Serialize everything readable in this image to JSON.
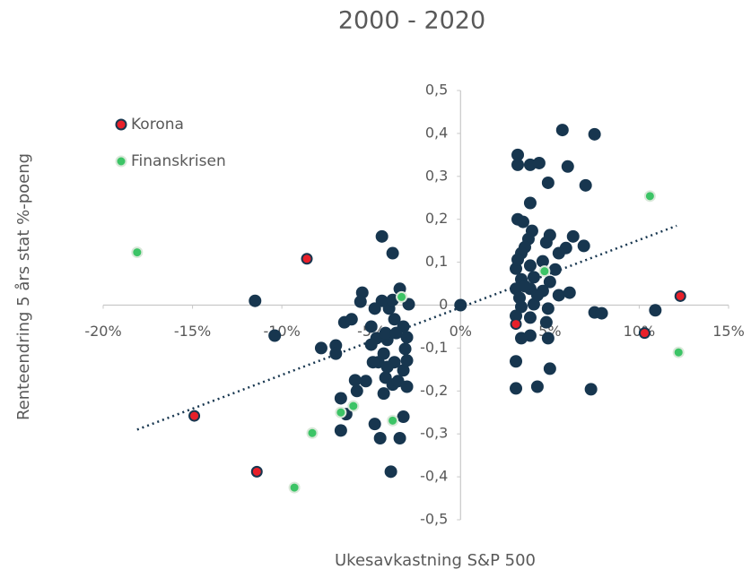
{
  "chart_data": {
    "type": "scatter",
    "title": "2000 - 2020",
    "x_label": "Ukesavkastning S&P 500",
    "y_label": "Renteendring 5 års stat %-poeng",
    "xlim": [
      -20,
      15
    ],
    "ylim": [
      -0.5,
      0.5
    ],
    "xticks": [
      {
        "value": -20,
        "label": "-20%"
      },
      {
        "value": -15,
        "label": "-15%"
      },
      {
        "value": -10,
        "label": "-10%"
      },
      {
        "value": -5,
        "label": "-5%"
      },
      {
        "value": 0,
        "label": "0%"
      },
      {
        "value": 5,
        "label": "5%"
      },
      {
        "value": 10,
        "label": "10%"
      },
      {
        "value": 15,
        "label": "15%"
      }
    ],
    "yticks": [
      {
        "value": 0.5,
        "label": "0,5"
      },
      {
        "value": 0.4,
        "label": "0,4"
      },
      {
        "value": 0.3,
        "label": "0,3"
      },
      {
        "value": 0.2,
        "label": "0,2"
      },
      {
        "value": 0.1,
        "label": "0,1"
      },
      0,
      {
        "value": -0.1,
        "label": "-0,1"
      },
      {
        "value": -0.2,
        "label": "-0,2"
      },
      {
        "value": -0.3,
        "label": "-0,3"
      },
      {
        "value": -0.4,
        "label": "-0,4"
      },
      {
        "value": -0.5,
        "label": "-0,5"
      }
    ],
    "legend": "top-left",
    "trendline": {
      "color": "#17364f",
      "x": [
        -18.1,
        12.1
      ],
      "y": [
        -0.29,
        0.185
      ]
    },
    "series": [
      {
        "color": "#17364f",
        "x": [
          -11.5,
          -10.4,
          -7.8,
          -6.98,
          -6.98,
          -6.5,
          -6.1,
          -5.5,
          -5.6,
          -5.9,
          -5.8,
          -6.7,
          -6.4,
          -6.7,
          -5.3,
          -4.8,
          -4.5,
          -4.4,
          -3.8,
          -3.9,
          -3.4,
          -3.2,
          -4.3,
          -4.2,
          -3.8,
          -3.5,
          -3.0,
          -3.2,
          -3.0,
          -3.1,
          -3.0,
          -3.2,
          -3.7,
          -4.0,
          -4.4,
          -3.8,
          -4.8,
          -5.0,
          -4.7,
          -4.3,
          -4.6,
          -4.9,
          -5.0,
          -4.1,
          -3.7,
          -4.1,
          -2.9,
          -3.4,
          -4.2,
          -3.6,
          0,
          5.7,
          7.5,
          3.2,
          3.2,
          3.9,
          4.4,
          6.0,
          4.9,
          7.0,
          3.9,
          3.2,
          3.5,
          4.0,
          5.0,
          4.8,
          3.8,
          3.6,
          3.4,
          5.9,
          6.9,
          6.3,
          5.5,
          4.6,
          3.9,
          5.3,
          3.1,
          3.4,
          4.1,
          5.0,
          3.1,
          3.9,
          4.6,
          5.5,
          6.1,
          3.3,
          3.4,
          4.1,
          4.9,
          3.1,
          3.9,
          4.8,
          3.4,
          3.9,
          4.9,
          7.5,
          7.9,
          10.9,
          3.1,
          5.0,
          3.1,
          4.3,
          7.3,
          3.6,
          4.3,
          3.2
        ],
        "values": [
          0.01,
          -0.071,
          -0.1,
          -0.094,
          -0.113,
          -0.04,
          -0.033,
          0.029,
          0.008,
          -0.175,
          -0.2,
          -0.217,
          -0.254,
          -0.292,
          -0.177,
          -0.277,
          -0.31,
          0.16,
          0.121,
          -0.388,
          -0.31,
          -0.26,
          -0.206,
          -0.169,
          -0.185,
          -0.177,
          -0.19,
          -0.152,
          -0.129,
          -0.102,
          -0.075,
          -0.05,
          -0.033,
          -0.008,
          0.01,
          0.012,
          -0.008,
          -0.05,
          -0.077,
          -0.113,
          -0.133,
          -0.133,
          -0.092,
          -0.081,
          -0.133,
          -0.144,
          0.002,
          0.038,
          -0.065,
          -0.065,
          0,
          0.408,
          0.398,
          0.35,
          0.327,
          0.327,
          0.331,
          0.323,
          0.285,
          0.279,
          0.238,
          0.2,
          0.194,
          0.173,
          0.163,
          0.146,
          0.154,
          0.135,
          0.121,
          0.133,
          0.138,
          0.16,
          0.121,
          0.102,
          0.092,
          0.083,
          0.085,
          0.06,
          0.065,
          0.054,
          0.038,
          0.038,
          0.033,
          0.023,
          0.029,
          0.017,
          -0.004,
          0.002,
          -0.008,
          -0.025,
          -0.029,
          -0.04,
          -0.077,
          -0.071,
          -0.077,
          -0.017,
          -0.019,
          -0.012,
          -0.131,
          -0.148,
          -0.194,
          -0.19,
          -0.196,
          0.044,
          0.023,
          0.106
        ]
      },
      {
        "name": "Korona",
        "color": "#e8202a",
        "x": [
          -8.6,
          -14.9,
          -11.4,
          3.1,
          10.3,
          12.3
        ],
        "values": [
          0.108,
          -0.258,
          -0.388,
          -0.044,
          -0.065,
          0.021
        ]
      },
      {
        "name": "Finanskrisen",
        "color": "#3cc466",
        "x": [
          -18.1,
          -3.3,
          -6.7,
          -6.0,
          -8.3,
          -9.3,
          -3.8,
          4.7,
          10.6,
          12.2
        ],
        "values": [
          0.123,
          0.019,
          -0.25,
          -0.235,
          -0.298,
          -0.425,
          -0.269,
          0.079,
          0.254,
          -0.11
        ]
      }
    ]
  }
}
